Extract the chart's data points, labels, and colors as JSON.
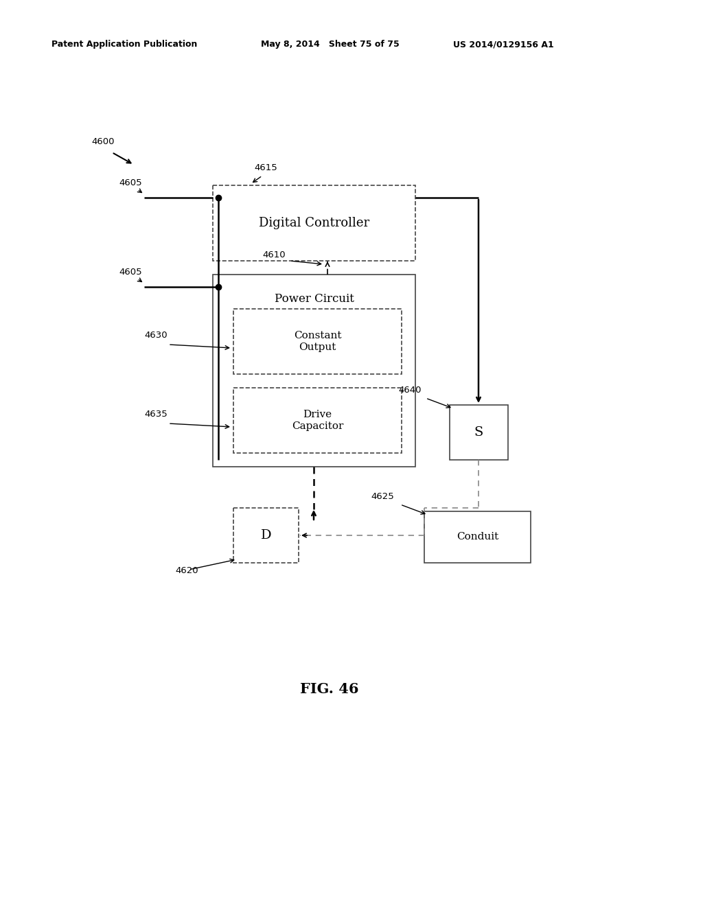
{
  "bg_color": "#ffffff",
  "header_text": "Patent Application Publication",
  "header_date": "May 8, 2014   Sheet 75 of 75",
  "header_patent": "US 2014/0129156 A1",
  "fig_label": "FIG. 46"
}
